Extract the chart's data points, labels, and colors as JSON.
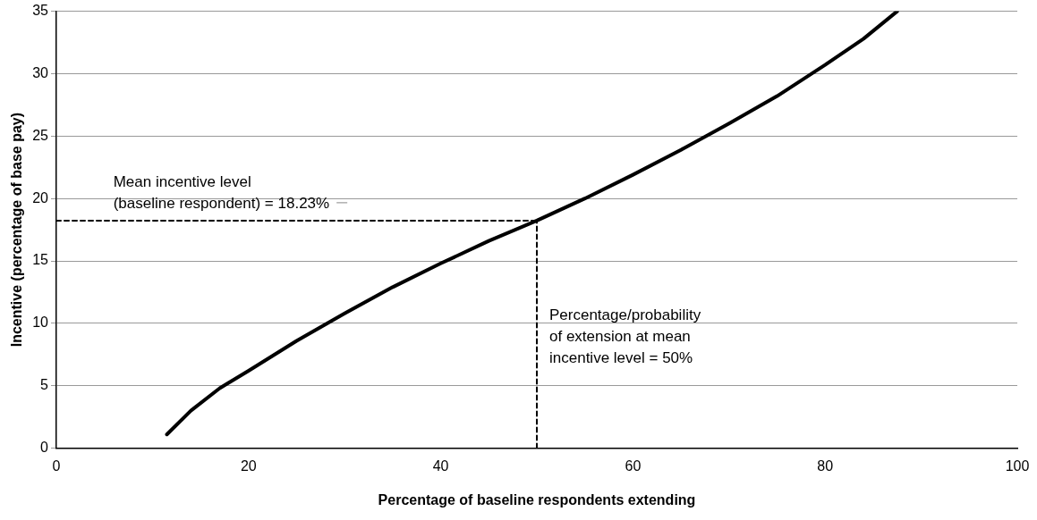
{
  "chart_data": {
    "type": "line",
    "xlabel": "Percentage of baseline respondents extending",
    "ylabel": "Incentive (percentage of base pay)",
    "xlim": [
      0,
      100
    ],
    "xticks": [
      0,
      20,
      40,
      60,
      80,
      100
    ],
    "ylim": [
      0,
      35
    ],
    "yticks": [
      0,
      5,
      10,
      15,
      20,
      25,
      30,
      35
    ],
    "grid": "y",
    "legend": false,
    "marker": "none",
    "series": [
      {
        "color": "#000000",
        "line_style": "solid",
        "x": [
          11.5,
          14,
          17,
          20,
          25,
          30,
          35,
          40,
          45,
          50,
          55,
          60,
          65,
          70,
          75,
          80,
          84,
          87.5
        ],
        "values": [
          1.1,
          3.0,
          4.8,
          6.2,
          8.6,
          10.8,
          12.9,
          14.8,
          16.6,
          18.23,
          20.0,
          21.9,
          23.9,
          26.0,
          28.2,
          30.7,
          32.8,
          35
        ]
      },
      {
        "color": "#000000",
        "line_style": "dashed",
        "x": [
          0,
          50
        ],
        "values": [
          18.23,
          18.23
        ]
      },
      {
        "color": "#000000",
        "line_style": "dashed",
        "x": [
          50,
          50
        ],
        "values": [
          0,
          18.23
        ]
      }
    ],
    "annotations": [
      {
        "text": "Mean incentive level\n(baseline respondent) = 18.23%",
        "x": 5,
        "y": 18.23
      },
      {
        "text": "Percentage/probability\nof extension at mean\nincentive level = 50%",
        "x": 50,
        "y": 9
      }
    ]
  }
}
